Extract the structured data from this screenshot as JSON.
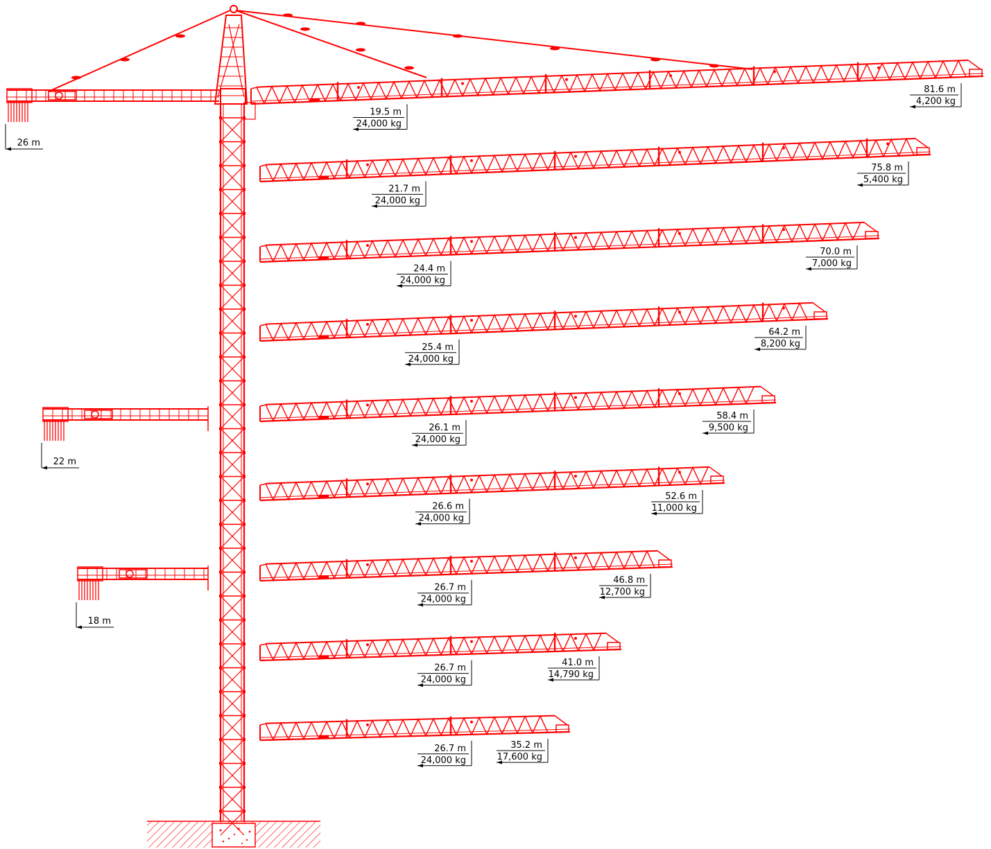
{
  "diagram": {
    "line_color": "#ff0000",
    "text_color": "#000000",
    "background": "#ffffff",
    "counter_jibs": [
      {
        "label": "26 m"
      },
      {
        "label": "22 m"
      },
      {
        "label": "18 m"
      }
    ],
    "jib_configurations": [
      {
        "near_radius": "19.5 m",
        "near_load": "24,000 kg",
        "tip_radius": "81.6 m",
        "tip_load": "4,200 kg"
      },
      {
        "near_radius": "21.7 m",
        "near_load": "24,000 kg",
        "tip_radius": "75.8 m",
        "tip_load": "5,400 kg"
      },
      {
        "near_radius": "24.4 m",
        "near_load": "24,000 kg",
        "tip_radius": "70.0 m",
        "tip_load": "7,000 kg"
      },
      {
        "near_radius": "25.4 m",
        "near_load": "24,000 kg",
        "tip_radius": "64.2 m",
        "tip_load": "8,200 kg"
      },
      {
        "near_radius": "26.1 m",
        "near_load": "24,000 kg",
        "tip_radius": "58.4 m",
        "tip_load": "9,500 kg"
      },
      {
        "near_radius": "26.6 m",
        "near_load": "24,000 kg",
        "tip_radius": "52.6 m",
        "tip_load": "11,000 kg"
      },
      {
        "near_radius": "26.7 m",
        "near_load": "24,000 kg",
        "tip_radius": "46.8 m",
        "tip_load": "12,700 kg"
      },
      {
        "near_radius": "26.7 m",
        "near_load": "24,000 kg",
        "tip_radius": "41.0 m",
        "tip_load": "14,790 kg"
      },
      {
        "near_radius": "26.7 m",
        "near_load": "24,000 kg",
        "tip_radius": "35.2 m",
        "tip_load": "17,600 kg"
      }
    ]
  }
}
